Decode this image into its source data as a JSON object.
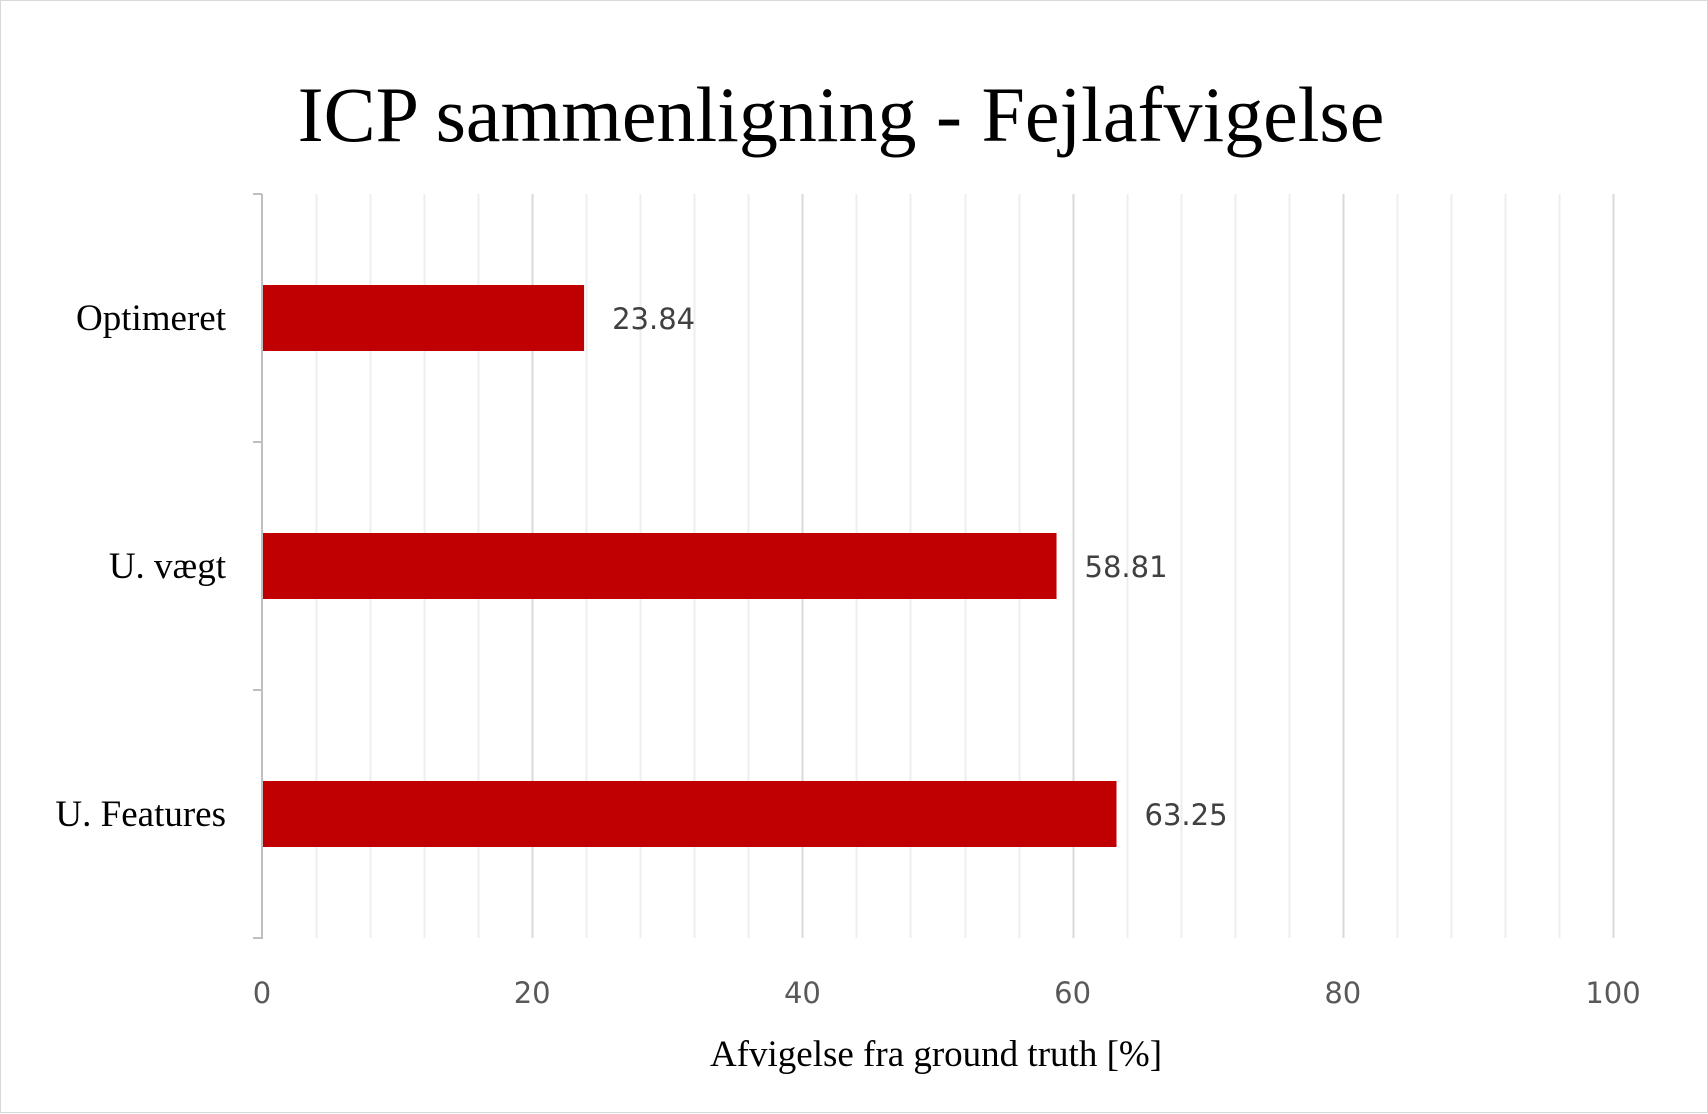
{
  "chart_data": {
    "type": "bar",
    "orientation": "horizontal",
    "title": "ICP sammenligning - Fejlafvigelse",
    "xlabel": "Afvigelse fra ground truth [%]",
    "ylabel": "",
    "categories": [
      "Optimeret",
      "U. vægt",
      "U. Features"
    ],
    "values": [
      23.84,
      58.81,
      63.25
    ],
    "data_labels": [
      "23.84",
      "58.81",
      "63.25"
    ],
    "xlim": [
      0,
      100
    ],
    "x_ticks": [
      0,
      20,
      40,
      60,
      80,
      100
    ],
    "x_tick_labels": [
      "0",
      "20",
      "40",
      "60",
      "80",
      "100"
    ],
    "major_gridlines": true,
    "minor_gridlines": true,
    "minor_step": 4,
    "legend": "none",
    "bar_color": "#c00000",
    "major_grid_color": "#d9d9d9",
    "minor_grid_color": "#eeeeee"
  }
}
